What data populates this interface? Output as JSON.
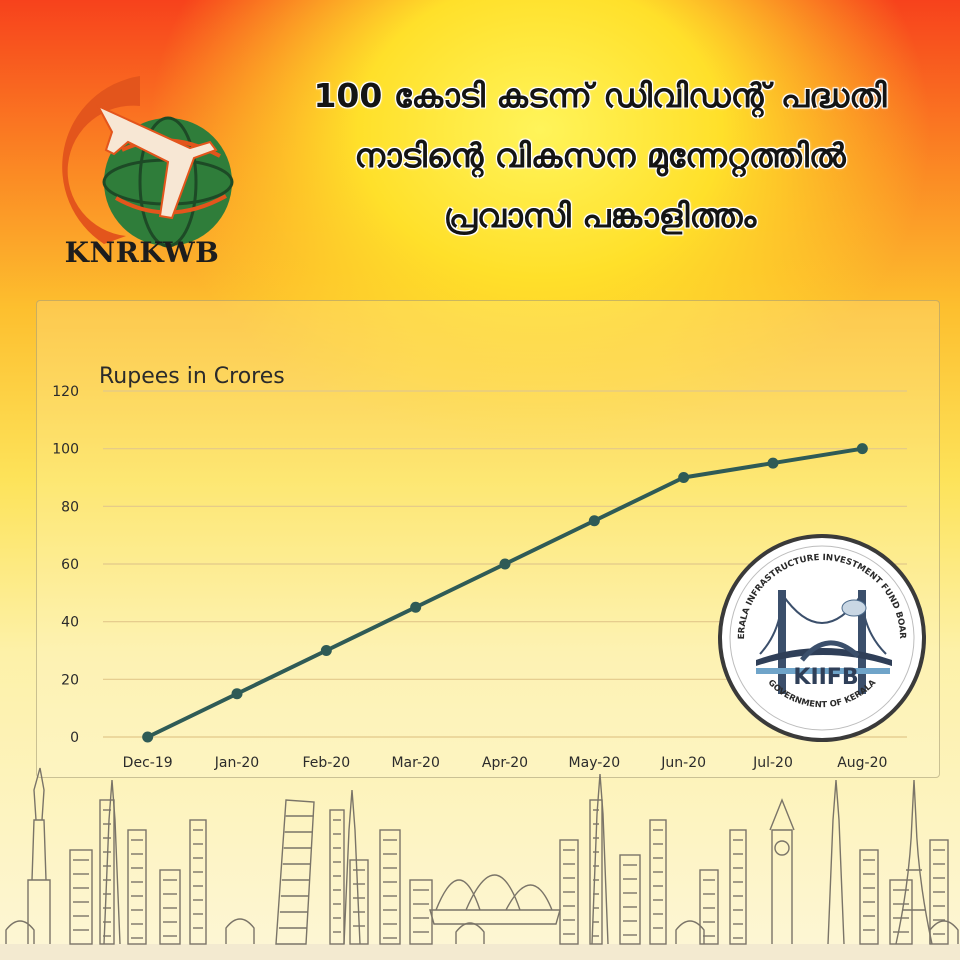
{
  "logo": {
    "name": "KNRKWB",
    "icon": "globe-airplane-icon",
    "colors": {
      "orange": "#e3551c",
      "green": "#2f7d3a",
      "dark": "#1d4a26"
    }
  },
  "headline": {
    "line1": "100 കോടി കടന്ന് ഡിവിഡന്റ് പദ്ധതി",
    "line2": "നാടിന്റെ വികസന മുന്നേറ്റത്തിൽ",
    "line3": "പ്രവാസി പങ്കാളിത്തം"
  },
  "badge": {
    "arc_text": "KERALA INFRASTRUCTURE INVESTMENT FUND BOARD",
    "name": "KIIFB",
    "bottom_text": "GOVERNMENT OF KERALA",
    "icon": "bridge-icon"
  },
  "chart_data": {
    "type": "line",
    "ylabel": "Rupees in Crores",
    "categories": [
      "Dec-19",
      "Jan-20",
      "Feb-20",
      "Mar-20",
      "Apr-20",
      "May-20",
      "Jun-20",
      "Jul-20",
      "Aug-20"
    ],
    "values": [
      0,
      15,
      30,
      45,
      60,
      75,
      90,
      95,
      100
    ],
    "ylim": [
      0,
      120
    ],
    "yticks": [
      0,
      20,
      40,
      60,
      80,
      100,
      120
    ],
    "grid": true,
    "legend": "none",
    "colors": {
      "line": "#2f5b56",
      "marker": "#2f5b56",
      "grid": "#e2c88a"
    }
  },
  "skyline": {
    "icon": "world-landmarks-skyline-icon",
    "color": "#7a7468"
  }
}
